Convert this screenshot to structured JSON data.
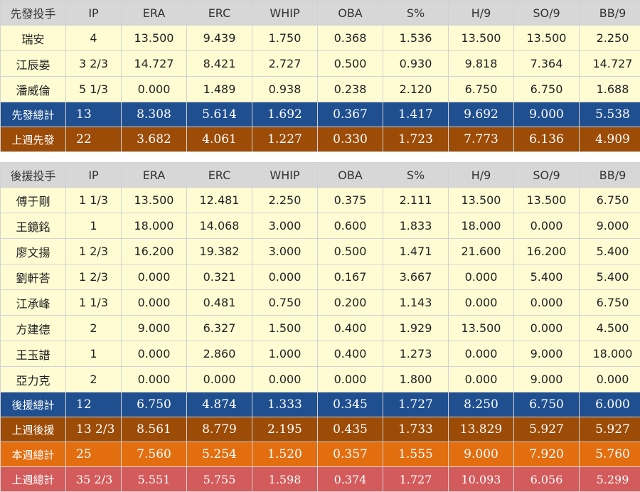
{
  "starters": {
    "header": [
      "先發投手",
      "IP",
      "ERA",
      "ERC",
      "WHIP",
      "OBA",
      "S%",
      "H/9",
      "SO/9",
      "BB/9"
    ],
    "rows": [
      [
        "瑞安",
        "4",
        "13.500",
        "9.439",
        "1.750",
        "0.368",
        "1.536",
        "13.500",
        "13.500",
        "2.250"
      ],
      [
        "江辰晏",
        "3 2/3",
        "14.727",
        "8.421",
        "2.727",
        "0.500",
        "0.930",
        "9.818",
        "7.364",
        "14.727"
      ],
      [
        "潘威倫",
        "5 1/3",
        "0.000",
        "1.489",
        "0.938",
        "0.238",
        "2.120",
        "6.750",
        "6.750",
        "1.688"
      ]
    ],
    "total": [
      "先發總計",
      "13",
      "8.308",
      "5.614",
      "1.692",
      "0.367",
      "1.417",
      "9.692",
      "9.000",
      "5.538"
    ],
    "last_week": [
      "上週先發",
      "22",
      "3.682",
      "4.061",
      "1.227",
      "0.330",
      "1.723",
      "7.773",
      "6.136",
      "4.909"
    ]
  },
  "relievers": {
    "header": [
      "後援投手",
      "IP",
      "ERA",
      "ERC",
      "WHIP",
      "OBA",
      "S%",
      "H/9",
      "SO/9",
      "BB/9"
    ],
    "rows": [
      [
        "傅于剛",
        "1 1/3",
        "13.500",
        "12.481",
        "2.250",
        "0.375",
        "2.111",
        "13.500",
        "13.500",
        "6.750"
      ],
      [
        "王鏡銘",
        "1",
        "18.000",
        "14.068",
        "3.000",
        "0.600",
        "1.833",
        "18.000",
        "0.000",
        "9.000"
      ],
      [
        "廖文揚",
        "1 2/3",
        "16.200",
        "19.382",
        "3.000",
        "0.500",
        "1.471",
        "21.600",
        "16.200",
        "5.400"
      ],
      [
        "劉軒荅",
        "1 2/3",
        "0.000",
        "0.321",
        "0.000",
        "0.167",
        "3.667",
        "0.000",
        "5.400",
        "5.400"
      ],
      [
        "江承峰",
        "1 1/3",
        "0.000",
        "0.481",
        "0.750",
        "0.200",
        "1.143",
        "0.000",
        "0.000",
        "6.750"
      ],
      [
        "方建德",
        "2",
        "9.000",
        "6.327",
        "1.500",
        "0.400",
        "1.929",
        "13.500",
        "0.000",
        "4.500"
      ],
      [
        "王玉譜",
        "1",
        "0.000",
        "2.860",
        "1.000",
        "0.400",
        "1.273",
        "0.000",
        "9.000",
        "18.000"
      ],
      [
        "亞力克",
        "2",
        "0.000",
        "0.000",
        "0.000",
        "0.000",
        "1.800",
        "0.000",
        "9.000",
        "0.000"
      ]
    ],
    "total": [
      "後援總計",
      "12",
      "6.750",
      "4.874",
      "1.333",
      "0.345",
      "1.727",
      "8.250",
      "6.750",
      "6.000"
    ],
    "last_week": [
      "上週後援",
      "13 2/3",
      "8.561",
      "8.779",
      "2.195",
      "0.435",
      "1.733",
      "13.829",
      "5.927",
      "5.927"
    ]
  },
  "week_total": [
    "本週總計",
    "25",
    "7.560",
    "5.254",
    "1.520",
    "0.357",
    "1.555",
    "9.000",
    "7.920",
    "5.760"
  ],
  "last_week_total": [
    "上週總計",
    "35 2/3",
    "5.551",
    "5.755",
    "1.598",
    "0.374",
    "1.727",
    "10.093",
    "6.056",
    "5.299"
  ]
}
